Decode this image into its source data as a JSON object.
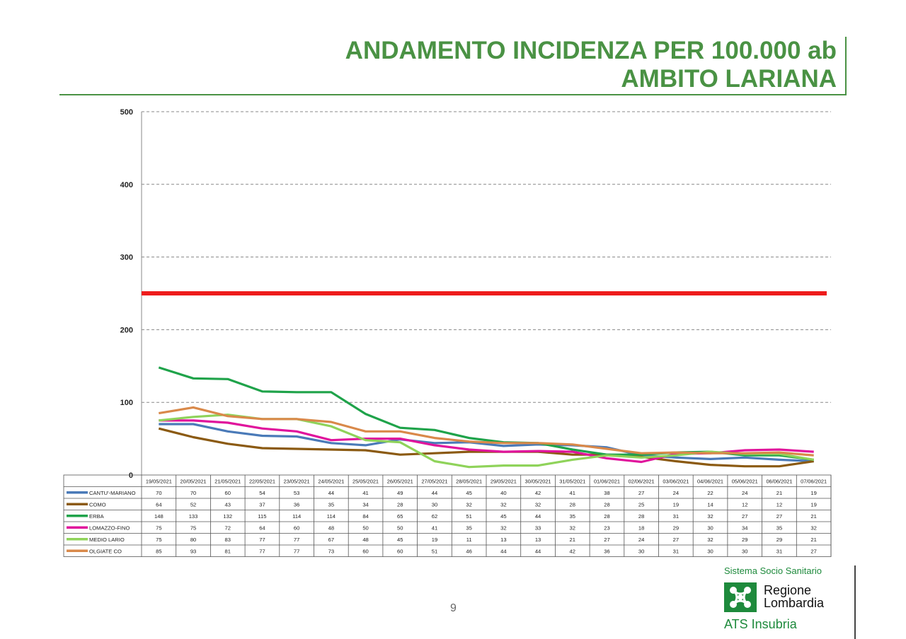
{
  "title": {
    "line1": "ANDAMENTO INCIDENZA PER 100.000 ab",
    "line2": "AMBITO LARIANA"
  },
  "page_number": "9",
  "logo": {
    "top_text": "Sistema Socio Sanitario",
    "name_line1": "Regione",
    "name_line2": "Lombardia",
    "bottom_text": "ATS Insubria",
    "color": "#1e8a3c"
  },
  "chart_data": {
    "type": "line",
    "title": "",
    "xlabel": "",
    "ylabel": "",
    "ylim": [
      0,
      500
    ],
    "yticks": [
      0,
      100,
      200,
      300,
      400,
      500
    ],
    "grid": true,
    "threshold": {
      "value": 250,
      "color": "#ee1c1c"
    },
    "x": [
      "19/05/2021",
      "20/05/2021",
      "21/05/2021",
      "22/05/2021",
      "23/05/2021",
      "24/05/2021",
      "25/05/2021",
      "26/05/2021",
      "27/05/2021",
      "28/05/2021",
      "29/05/2021",
      "30/05/2021",
      "31/05/2021",
      "01/06/2021",
      "02/06/2021",
      "03/06/2021",
      "04/06/2021",
      "05/06/2021",
      "06/06/2021",
      "07/06/2021"
    ],
    "series": [
      {
        "name": "CANTU'-MARIANO",
        "color": "#4a7ab8",
        "values": [
          70,
          70,
          60,
          54,
          53,
          44,
          41,
          49,
          44,
          45,
          40,
          42,
          41,
          38,
          27,
          24,
          22,
          24,
          21,
          19
        ]
      },
      {
        "name": "COMO",
        "color": "#8b5a12",
        "values": [
          64,
          52,
          43,
          37,
          36,
          35,
          34,
          28,
          30,
          32,
          32,
          32,
          28,
          28,
          25,
          19,
          14,
          12,
          12,
          19
        ]
      },
      {
        "name": "ERBA",
        "color": "#1fa34a",
        "values": [
          148,
          133,
          132,
          115,
          114,
          114,
          84,
          65,
          62,
          51,
          45,
          44,
          35,
          28,
          28,
          31,
          32,
          27,
          27,
          21
        ]
      },
      {
        "name": "LOMAZZO-FINO",
        "color": "#e0149c",
        "values": [
          75,
          75,
          72,
          64,
          60,
          48,
          50,
          50,
          41,
          35,
          32,
          33,
          32,
          23,
          18,
          29,
          30,
          34,
          35,
          32
        ]
      },
      {
        "name": "MEDIO LARIO",
        "color": "#8fd35a",
        "values": [
          75,
          80,
          83,
          77,
          77,
          67,
          48,
          45,
          19,
          11,
          13,
          13,
          21,
          27,
          24,
          27,
          32,
          29,
          29,
          21
        ]
      },
      {
        "name": "OLGIATE CO",
        "color": "#d9894a",
        "values": [
          85,
          93,
          81,
          77,
          77,
          73,
          60,
          60,
          51,
          46,
          44,
          44,
          42,
          36,
          30,
          31,
          30,
          30,
          31,
          27
        ]
      }
    ]
  }
}
